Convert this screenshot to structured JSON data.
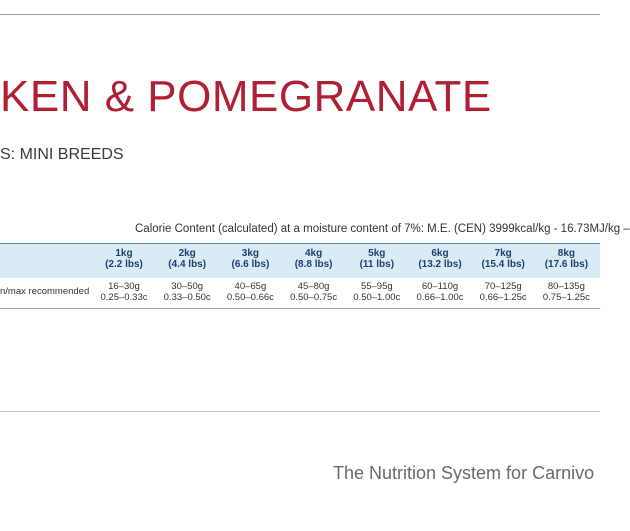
{
  "header": {
    "title": "KEN & POMEGRANATE",
    "subtitle": "S: MINI BREEDS"
  },
  "table": {
    "caption": "Calorie Content (calculated) at a moisture content of 7%: M.E. (CEN) 3999kcal/kg - 16.73MJ/kg –",
    "columns": [
      {
        "weight": "1kg",
        "lbs": "(2.2 lbs)"
      },
      {
        "weight": "2kg",
        "lbs": "(4.4 lbs)"
      },
      {
        "weight": "3kg",
        "lbs": "(6.6 lbs)"
      },
      {
        "weight": "4kg",
        "lbs": "(8.8 lbs)"
      },
      {
        "weight": "5kg",
        "lbs": "(11 lbs)"
      },
      {
        "weight": "6kg",
        "lbs": "(13.2 lbs)"
      },
      {
        "weight": "7kg",
        "lbs": "(15.4 lbs)"
      },
      {
        "weight": "8kg",
        "lbs": "(17.6 lbs)"
      }
    ],
    "rows": [
      {
        "label": "n/max recommended",
        "cells": [
          [
            "16–30g",
            "0.25–0.33c"
          ],
          [
            "30–50g",
            "0.33–0.50c"
          ],
          [
            "40–65g",
            "0.50–0.66c"
          ],
          [
            "45–80g",
            "0.50–0.75c"
          ],
          [
            "55–95g",
            "0.50–1.00c"
          ],
          [
            "60–110g",
            "0.66–1.00c"
          ],
          [
            "70–125g",
            "0.66–1.25c"
          ],
          [
            "80–135g",
            "0.75–1.25c"
          ]
        ]
      }
    ]
  },
  "footer": {
    "tagline": "The Nutrition System for Carnivo"
  }
}
